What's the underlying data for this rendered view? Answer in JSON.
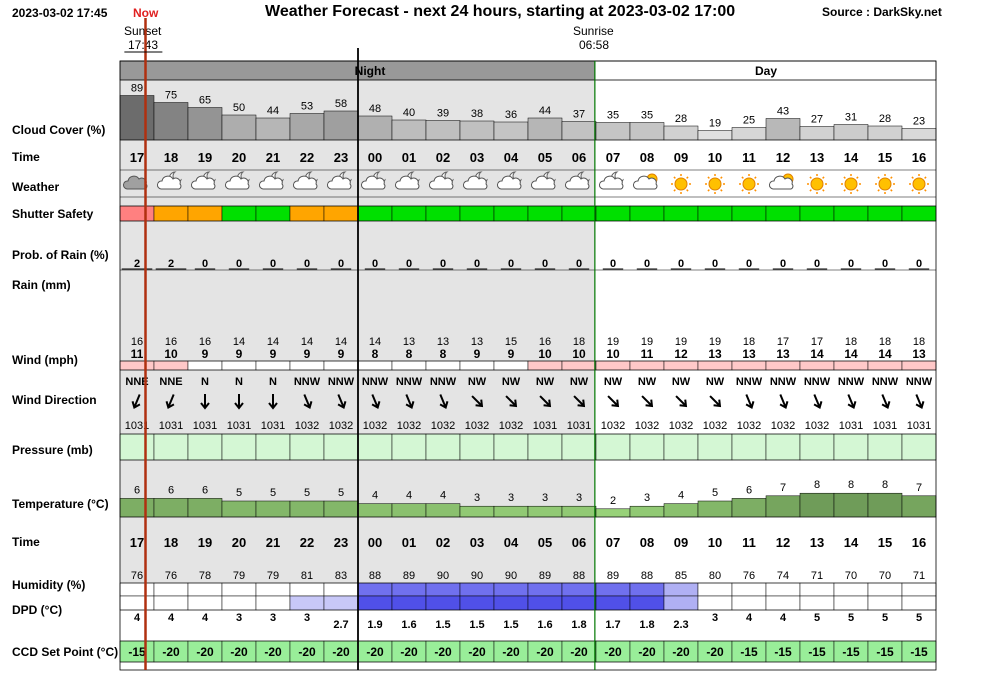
{
  "header": {
    "datetime": "2023-03-02 17:45",
    "now_label": "Now",
    "title": "Weather Forecast - next 24 hours, starting at 2023-03-02 17:00",
    "source": "Source : DarkSky.net",
    "sunset_label": "Sunset",
    "sunset_time": "17:43",
    "sunrise_label": "Sunrise",
    "sunrise_time": "06:58",
    "night_label": "Night",
    "day_label": "Day"
  },
  "row_labels": {
    "cloud": "Cloud Cover (%)",
    "time": "Time",
    "weather": "Weather",
    "shutter": "Shutter Safety",
    "rain_prob": "Prob. of Rain (%)",
    "rain_mm": "Rain (mm)",
    "wind": "Wind (mph)",
    "wind_dir": "Wind Direction",
    "pressure": "Pressure (mb)",
    "temperature": "Temperature (°C)",
    "time2": "Time",
    "humidity": "Humidity (%)",
    "dpd": "DPD (°C)",
    "ccd": "CCD Set Point (°C)"
  },
  "colors": {
    "night_band": "#e4e4e4",
    "night_header": "#999999",
    "safe": "#00e000",
    "caution": "#ffa500",
    "unsafe": "#ff8080",
    "pressure": "#d4f7d4",
    "ccd": "#99ee99",
    "now_line": "#b03010",
    "midnight_line": "#000000",
    "sunrise_line": "#007700"
  },
  "chart_data": {
    "type": "table",
    "hours": [
      "17",
      "18",
      "19",
      "20",
      "21",
      "22",
      "23",
      "00",
      "01",
      "02",
      "03",
      "04",
      "05",
      "06",
      "07",
      "08",
      "09",
      "10",
      "11",
      "12",
      "13",
      "14",
      "15",
      "16"
    ],
    "cloud_cover": [
      89,
      75,
      65,
      50,
      44,
      53,
      58,
      48,
      40,
      39,
      38,
      36,
      44,
      37,
      35,
      35,
      28,
      19,
      25,
      43,
      27,
      31,
      28,
      23
    ],
    "weather_icons": [
      "cloud",
      "partly-cloudy-night",
      "partly-cloudy-night",
      "partly-cloudy-night",
      "partly-cloudy-night",
      "partly-cloudy-night",
      "partly-cloudy-night",
      "partly-cloudy-night",
      "partly-cloudy-night",
      "partly-cloudy-night",
      "partly-cloudy-night",
      "partly-cloudy-night",
      "partly-cloudy-night",
      "partly-cloudy-night",
      "partly-cloudy-night",
      "partly-cloudy-day",
      "sun",
      "sun",
      "sun",
      "partly-cloudy-day",
      "sun",
      "sun",
      "sun",
      "sun"
    ],
    "shutter_safety": [
      "unsafe",
      "caution",
      "caution",
      "safe",
      "safe",
      "caution",
      "caution",
      "safe",
      "safe",
      "safe",
      "safe",
      "safe",
      "safe",
      "safe",
      "safe",
      "safe",
      "safe",
      "safe",
      "safe",
      "safe",
      "safe",
      "safe",
      "safe",
      "safe"
    ],
    "rain_probability": [
      2,
      2,
      0,
      0,
      0,
      0,
      0,
      0,
      0,
      0,
      0,
      0,
      0,
      0,
      0,
      0,
      0,
      0,
      0,
      0,
      0,
      0,
      0,
      0
    ],
    "wind_gust": [
      16,
      16,
      16,
      14,
      14,
      14,
      14,
      14,
      13,
      13,
      13,
      15,
      16,
      18,
      19,
      19,
      19,
      19,
      18,
      17,
      17,
      18,
      18,
      18
    ],
    "wind_speed": [
      11,
      10,
      9,
      9,
      9,
      9,
      9,
      8,
      8,
      8,
      9,
      9,
      10,
      10,
      10,
      11,
      12,
      13,
      13,
      13,
      14,
      14,
      14,
      13
    ],
    "wind_direction": [
      "NNE",
      "NNE",
      "N",
      "N",
      "N",
      "NNW",
      "NNW",
      "NNW",
      "NNW",
      "NNW",
      "NW",
      "NW",
      "NW",
      "NW",
      "NW",
      "NW",
      "NW",
      "NW",
      "NNW",
      "NNW",
      "NNW",
      "NNW",
      "NNW",
      "NNW"
    ],
    "pressure": [
      1031,
      1031,
      1031,
      1031,
      1031,
      1032,
      1032,
      1032,
      1032,
      1032,
      1032,
      1032,
      1031,
      1031,
      1032,
      1032,
      1032,
      1032,
      1032,
      1032,
      1032,
      1031,
      1031,
      1031
    ],
    "temperature": [
      6,
      6,
      6,
      5,
      5,
      5,
      5,
      4,
      4,
      4,
      3,
      3,
      3,
      3,
      2,
      3,
      4,
      5,
      6,
      7,
      8,
      8,
      8,
      7
    ],
    "humidity": [
      76,
      76,
      78,
      79,
      79,
      81,
      83,
      88,
      89,
      90,
      90,
      90,
      89,
      88,
      89,
      88,
      85,
      80,
      76,
      74,
      71,
      70,
      70,
      71
    ],
    "dpd": [
      4,
      4,
      4,
      3,
      3,
      3,
      2.7,
      1.9,
      1.6,
      1.5,
      1.5,
      1.5,
      1.6,
      1.8,
      1.7,
      1.8,
      2.3,
      3,
      4,
      4,
      5,
      5,
      5,
      5
    ],
    "ccd_set_point": [
      -15,
      -20,
      -20,
      -20,
      -20,
      -20,
      -20,
      -20,
      -20,
      -20,
      -20,
      -20,
      -20,
      -20,
      -20,
      -20,
      -20,
      -20,
      -15,
      -15,
      -15,
      -15,
      -15,
      -15
    ],
    "now_time": "17:45",
    "sunset_time": "17:43",
    "sunrise_time": "06:58"
  }
}
